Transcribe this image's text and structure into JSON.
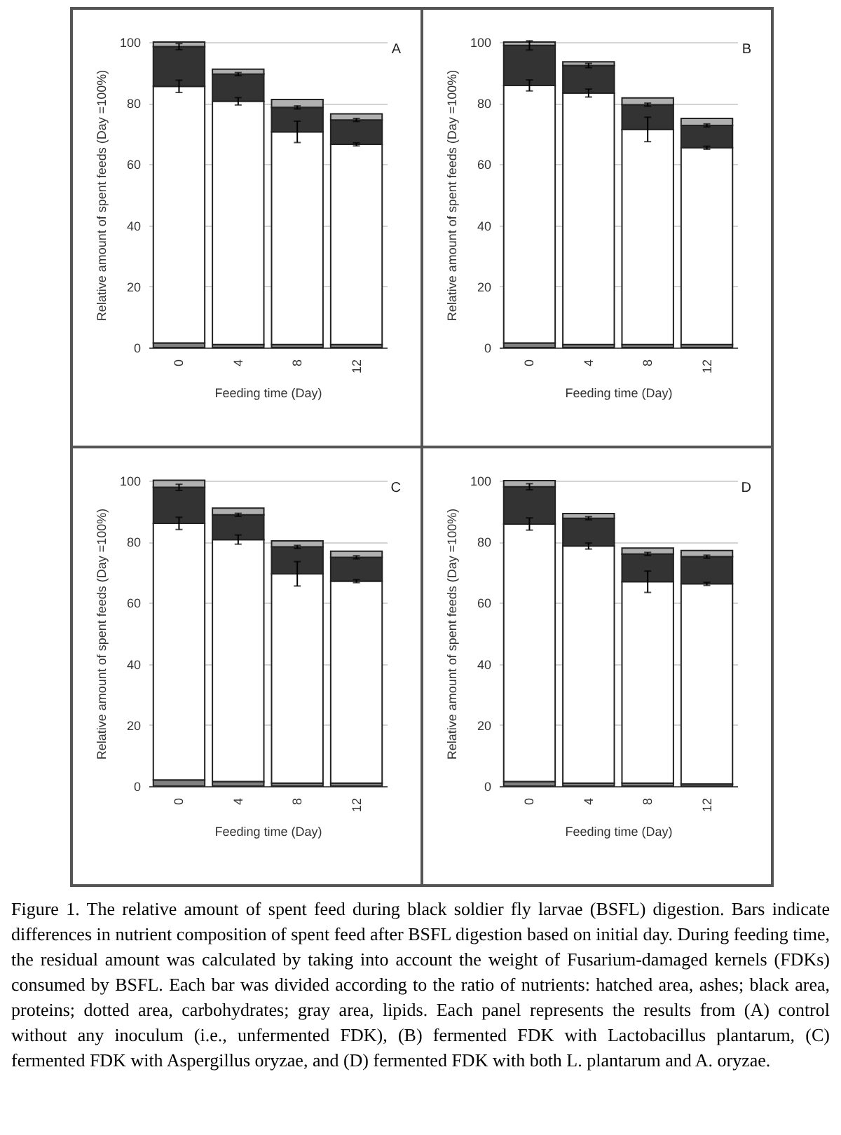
{
  "chart_data": [
    {
      "type": "bar",
      "title": "A",
      "xlabel": "Feeding time (Day)",
      "ylabel": "Relative amount of spent feeds (Day =100%)",
      "categories": [
        "0",
        "4",
        "8",
        "12"
      ],
      "stacked": true,
      "ylim": [
        0,
        100
      ],
      "yticks": [
        0,
        20,
        40,
        60,
        80,
        100
      ],
      "grid": "y",
      "legend": false,
      "series": [
        {
          "color": "#808080",
          "values": [
            1.5,
            1,
            1,
            1
          ]
        },
        {
          "color": "#ffffff",
          "values": [
            84,
            79.6,
            69.6,
            65.5
          ],
          "errors": [
            2,
            1.2,
            3.5,
            0.5
          ]
        },
        {
          "color": "#333333",
          "values": [
            13,
            8.9,
            8,
            8
          ],
          "errors": [
            1,
            0.5,
            0.5,
            0.5
          ]
        },
        {
          "color": "#b0b0b0",
          "values": [
            1.5,
            1.6,
            2.6,
            2
          ]
        }
      ]
    },
    {
      "type": "bar",
      "title": "B",
      "xlabel": "Feeding time (Day)",
      "ylabel": "Relative amount of spent feeds (Day =100%)",
      "categories": [
        "0",
        "4",
        "8",
        "12"
      ],
      "stacked": true,
      "ylim": [
        0,
        100
      ],
      "yticks": [
        0,
        20,
        40,
        60,
        80,
        100
      ],
      "grid": "y",
      "legend": false,
      "series": [
        {
          "color": "#808080",
          "values": [
            1.5,
            1,
            1,
            1
          ]
        },
        {
          "color": "#ffffff",
          "values": [
            84.3,
            82.3,
            70.4,
            64.4
          ],
          "errors": [
            1.8,
            1.3,
            4,
            0.5
          ]
        },
        {
          "color": "#333333",
          "values": [
            13.1,
            9,
            8.1,
            7.3
          ],
          "errors": [
            1.5,
            0.7,
            0.5,
            0.5
          ]
        },
        {
          "color": "#b0b0b0",
          "values": [
            1.1,
            1.2,
            2.2,
            2.3
          ]
        }
      ]
    },
    {
      "type": "bar",
      "title": "C",
      "xlabel": "Feeding time (Day)",
      "ylabel": "Relative amount of spent feeds (Day =100%)",
      "categories": [
        "0",
        "4",
        "8",
        "12"
      ],
      "stacked": true,
      "ylim": [
        0,
        100
      ],
      "yticks": [
        0,
        20,
        40,
        60,
        80,
        100
      ],
      "grid": "y",
      "legend": false,
      "series": [
        {
          "color": "#808080",
          "values": [
            2,
            1.5,
            1,
            1
          ]
        },
        {
          "color": "#ffffff",
          "values": [
            84,
            79.2,
            68.5,
            66.1
          ],
          "errors": [
            2,
            1.5,
            4,
            0.5
          ]
        },
        {
          "color": "#333333",
          "values": [
            11.8,
            8.1,
            8.8,
            7.8
          ],
          "errors": [
            1,
            0.5,
            0.5,
            0.5
          ]
        },
        {
          "color": "#b0b0b0",
          "values": [
            2.3,
            2.2,
            2,
            2
          ]
        }
      ]
    },
    {
      "type": "bar",
      "title": "D",
      "xlabel": "Feeding time (Day)",
      "ylabel": "Relative amount of spent feeds (Day =100%)",
      "categories": [
        "0",
        "4",
        "8",
        "12"
      ],
      "stacked": true,
      "ylim": [
        0,
        100
      ],
      "yticks": [
        0,
        20,
        40,
        60,
        80,
        100
      ],
      "grid": "y",
      "legend": false,
      "series": [
        {
          "color": "#808080",
          "values": [
            1.5,
            1,
            1,
            0.7
          ]
        },
        {
          "color": "#ffffff",
          "values": [
            84.3,
            77.6,
            65.9,
            65.5
          ],
          "errors": [
            2,
            1,
            3.5,
            0.5
          ]
        },
        {
          "color": "#333333",
          "values": [
            12.2,
            9.1,
            9.1,
            8.9
          ],
          "errors": [
            1,
            0.5,
            0.5,
            0.5
          ]
        },
        {
          "color": "#b0b0b0",
          "values": [
            2,
            1.5,
            1.9,
            2
          ]
        }
      ],
      "annotations": [
        "Figure 1. The relative amount of spent feed during black soldier fly larvae (BSFL) digestion. Bars indicate differences in nutrient composition of spent feed after BSFL digestion based on initial day. During feeding time, the residual amount was calculated by taking into account the weight of Fusarium-damaged kernels (FDKs) consumed by BSFL. Each bar was divided according to the ratio of nutrients: hatched area, ashes; black area, proteins; dotted area, carbohydrates; gray area, lipids. Each panel represents the results from (A) control without any inoculum (i.e., unfermented FDK), (B) fermented FDK with Lactobacillus plantarum, (C) fermented FDK with Aspergillus oryzae, and (D) fermented FDK with both L. plantarum and A. oryzae."
      ]
    }
  ]
}
